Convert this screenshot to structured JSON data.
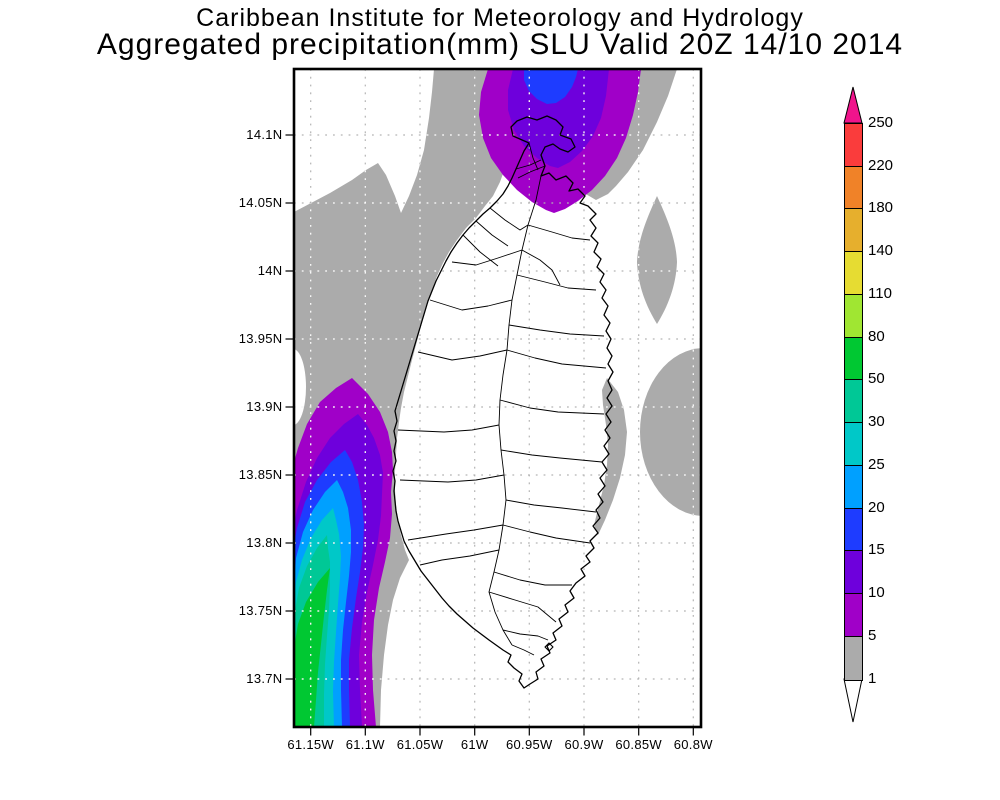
{
  "header": {
    "line1": "Caribbean Institute for Meteorology and Hydrology",
    "line2": "Aggregated precipitation(mm) SLU Valid 20Z 14/10 2014"
  },
  "axes": {
    "lat_ticks": [
      "14.1N",
      "14.05N",
      "14N",
      "13.95N",
      "13.9N",
      "13.85N",
      "13.8N",
      "13.75N",
      "13.7N"
    ],
    "lon_ticks": [
      "61.15W",
      "61.1W",
      "61.05W",
      "61W",
      "60.95W",
      "60.9W",
      "60.85W",
      "60.8W"
    ]
  },
  "colorbar": {
    "unit": "mm",
    "tick_labels": [
      "250",
      "220",
      "180",
      "140",
      "110",
      "80",
      "50",
      "30",
      "25",
      "20",
      "15",
      "10",
      "5",
      "1"
    ],
    "segment_colors_top_to_bottom": [
      "#fa3c3c",
      "#f08228",
      "#e6af2d",
      "#e6dc32",
      "#a0e632",
      "#00c832",
      "#00c896",
      "#00c8c8",
      "#00a0ff",
      "#1e3cff",
      "#6e00dc",
      "#a000c8",
      "#ababab"
    ],
    "above_max_color": "#f0148c",
    "below_min_color": "#ffffff"
  },
  "field_level_colors": {
    "1": "#ababab",
    "5": "#a000c8",
    "10": "#6e00dc",
    "15": "#1e3cff",
    "20": "#00a0ff",
    "25": "#00c8c8",
    "30": "#00c896",
    "50": "#00c832"
  },
  "map_style": {
    "sea_background": "#ffffff",
    "land_outline": "#000000",
    "grid_line": "#b4b4b4",
    "grid_line_over_field": "#ffffff",
    "frame": "#000000"
  }
}
